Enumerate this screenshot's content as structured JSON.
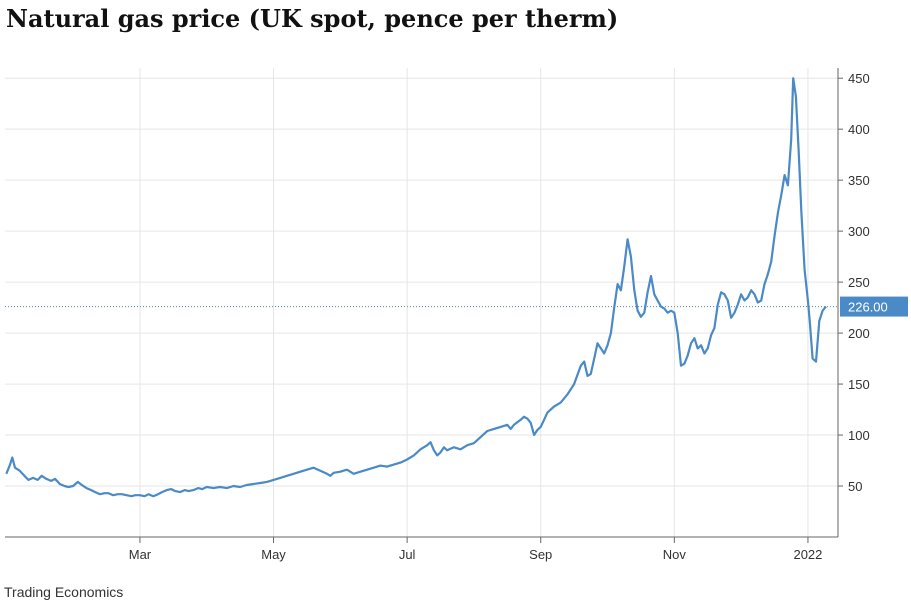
{
  "header": {
    "title": "Natural gas price (UK spot, pence per therm)"
  },
  "footer": {
    "source": "Trading Economics"
  },
  "colors": {
    "line": "#4a8ac6",
    "grid": "#e6e6e6",
    "axis": "#666666",
    "badge": "#4a8ac6"
  },
  "chart_data": {
    "type": "line",
    "title": "Natural gas price (UK spot, pence per therm)",
    "xlabel": "",
    "ylabel": "",
    "ylim": [
      0,
      460
    ],
    "yticks": [
      50,
      100,
      150,
      200,
      250,
      300,
      350,
      400,
      450
    ],
    "xticks": [
      {
        "label": "Mar",
        "x": 2.0
      },
      {
        "label": "May",
        "x": 4.0
      },
      {
        "label": "Jul",
        "x": 6.0
      },
      {
        "label": "Sep",
        "x": 8.0
      },
      {
        "label": "Nov",
        "x": 10.0
      },
      {
        "label": "2022",
        "x": 12.0
      }
    ],
    "x_note": "x is months since 1 Jan 2021",
    "last_value": 226.0,
    "last_value_label": "226.00",
    "grid": true,
    "series": [
      {
        "name": "",
        "points": [
          [
            0.0,
            62
          ],
          [
            0.05,
            70
          ],
          [
            0.09,
            78
          ],
          [
            0.13,
            68
          ],
          [
            0.2,
            65
          ],
          [
            0.27,
            60
          ],
          [
            0.33,
            56
          ],
          [
            0.4,
            58
          ],
          [
            0.47,
            56
          ],
          [
            0.53,
            60
          ],
          [
            0.6,
            57
          ],
          [
            0.67,
            55
          ],
          [
            0.73,
            57
          ],
          [
            0.8,
            52
          ],
          [
            0.87,
            50
          ],
          [
            0.93,
            49
          ],
          [
            1.0,
            50
          ],
          [
            1.07,
            54
          ],
          [
            1.13,
            51
          ],
          [
            1.2,
            48
          ],
          [
            1.27,
            46
          ],
          [
            1.33,
            44
          ],
          [
            1.4,
            42
          ],
          [
            1.47,
            43
          ],
          [
            1.53,
            43
          ],
          [
            1.6,
            41
          ],
          [
            1.67,
            42
          ],
          [
            1.73,
            42
          ],
          [
            1.8,
            41
          ],
          [
            1.87,
            40
          ],
          [
            1.93,
            41
          ],
          [
            2.0,
            41
          ],
          [
            2.07,
            40
          ],
          [
            2.13,
            42
          ],
          [
            2.2,
            40
          ],
          [
            2.27,
            42
          ],
          [
            2.33,
            44
          ],
          [
            2.4,
            46
          ],
          [
            2.47,
            47
          ],
          [
            2.53,
            45
          ],
          [
            2.6,
            44
          ],
          [
            2.67,
            46
          ],
          [
            2.73,
            45
          ],
          [
            2.8,
            46
          ],
          [
            2.87,
            48
          ],
          [
            2.93,
            47
          ],
          [
            3.0,
            49
          ],
          [
            3.1,
            48
          ],
          [
            3.2,
            49
          ],
          [
            3.3,
            48
          ],
          [
            3.4,
            50
          ],
          [
            3.5,
            49
          ],
          [
            3.6,
            51
          ],
          [
            3.7,
            52
          ],
          [
            3.8,
            53
          ],
          [
            3.9,
            54
          ],
          [
            4.0,
            56
          ],
          [
            4.1,
            58
          ],
          [
            4.2,
            60
          ],
          [
            4.3,
            62
          ],
          [
            4.4,
            64
          ],
          [
            4.5,
            66
          ],
          [
            4.6,
            68
          ],
          [
            4.7,
            65
          ],
          [
            4.8,
            62
          ],
          [
            4.85,
            60
          ],
          [
            4.9,
            63
          ],
          [
            5.0,
            64
          ],
          [
            5.1,
            66
          ],
          [
            5.2,
            62
          ],
          [
            5.3,
            64
          ],
          [
            5.4,
            66
          ],
          [
            5.5,
            68
          ],
          [
            5.6,
            70
          ],
          [
            5.7,
            69
          ],
          [
            5.8,
            71
          ],
          [
            5.9,
            73
          ],
          [
            6.0,
            76
          ],
          [
            6.1,
            80
          ],
          [
            6.2,
            86
          ],
          [
            6.3,
            90
          ],
          [
            6.35,
            93
          ],
          [
            6.4,
            85
          ],
          [
            6.45,
            80
          ],
          [
            6.5,
            83
          ],
          [
            6.55,
            88
          ],
          [
            6.6,
            85
          ],
          [
            6.7,
            88
          ],
          [
            6.8,
            86
          ],
          [
            6.9,
            90
          ],
          [
            7.0,
            92
          ],
          [
            7.1,
            98
          ],
          [
            7.2,
            104
          ],
          [
            7.3,
            106
          ],
          [
            7.4,
            108
          ],
          [
            7.5,
            110
          ],
          [
            7.55,
            106
          ],
          [
            7.6,
            110
          ],
          [
            7.7,
            115
          ],
          [
            7.75,
            118
          ],
          [
            7.8,
            116
          ],
          [
            7.85,
            112
          ],
          [
            7.9,
            100
          ],
          [
            7.95,
            105
          ],
          [
            8.0,
            108
          ],
          [
            8.05,
            115
          ],
          [
            8.1,
            122
          ],
          [
            8.2,
            128
          ],
          [
            8.3,
            132
          ],
          [
            8.4,
            140
          ],
          [
            8.5,
            150
          ],
          [
            8.6,
            168
          ],
          [
            8.65,
            172
          ],
          [
            8.7,
            158
          ],
          [
            8.75,
            160
          ],
          [
            8.8,
            175
          ],
          [
            8.85,
            190
          ],
          [
            8.9,
            185
          ],
          [
            8.95,
            180
          ],
          [
            9.0,
            188
          ],
          [
            9.05,
            200
          ],
          [
            9.1,
            225
          ],
          [
            9.15,
            248
          ],
          [
            9.2,
            242
          ],
          [
            9.25,
            265
          ],
          [
            9.3,
            292
          ],
          [
            9.35,
            275
          ],
          [
            9.4,
            242
          ],
          [
            9.45,
            222
          ],
          [
            9.5,
            216
          ],
          [
            9.55,
            220
          ],
          [
            9.6,
            240
          ],
          [
            9.65,
            256
          ],
          [
            9.7,
            238
          ],
          [
            9.75,
            232
          ],
          [
            9.8,
            226
          ],
          [
            9.85,
            224
          ],
          [
            9.9,
            220
          ],
          [
            9.95,
            222
          ],
          [
            10.0,
            220
          ],
          [
            10.05,
            200
          ],
          [
            10.1,
            168
          ],
          [
            10.15,
            170
          ],
          [
            10.2,
            178
          ],
          [
            10.25,
            190
          ],
          [
            10.3,
            195
          ],
          [
            10.35,
            185
          ],
          [
            10.4,
            188
          ],
          [
            10.45,
            180
          ],
          [
            10.5,
            185
          ],
          [
            10.55,
            198
          ],
          [
            10.6,
            205
          ],
          [
            10.65,
            228
          ],
          [
            10.7,
            240
          ],
          [
            10.75,
            238
          ],
          [
            10.8,
            232
          ],
          [
            10.85,
            215
          ],
          [
            10.9,
            220
          ],
          [
            10.95,
            228
          ],
          [
            11.0,
            238
          ],
          [
            11.05,
            232
          ],
          [
            11.1,
            235
          ],
          [
            11.15,
            242
          ],
          [
            11.2,
            238
          ],
          [
            11.25,
            230
          ],
          [
            11.3,
            232
          ],
          [
            11.35,
            248
          ],
          [
            11.4,
            258
          ],
          [
            11.45,
            270
          ],
          [
            11.5,
            295
          ],
          [
            11.55,
            318
          ],
          [
            11.6,
            335
          ],
          [
            11.65,
            355
          ],
          [
            11.7,
            345
          ],
          [
            11.75,
            390
          ],
          [
            11.78,
            450
          ],
          [
            11.82,
            432
          ],
          [
            11.86,
            380
          ],
          [
            11.9,
            320
          ],
          [
            11.95,
            262
          ],
          [
            12.0,
            232
          ],
          [
            12.03,
            210
          ],
          [
            12.07,
            175
          ],
          [
            12.12,
            172
          ],
          [
            12.17,
            212
          ],
          [
            12.22,
            222
          ],
          [
            12.27,
            226
          ]
        ]
      }
    ]
  }
}
